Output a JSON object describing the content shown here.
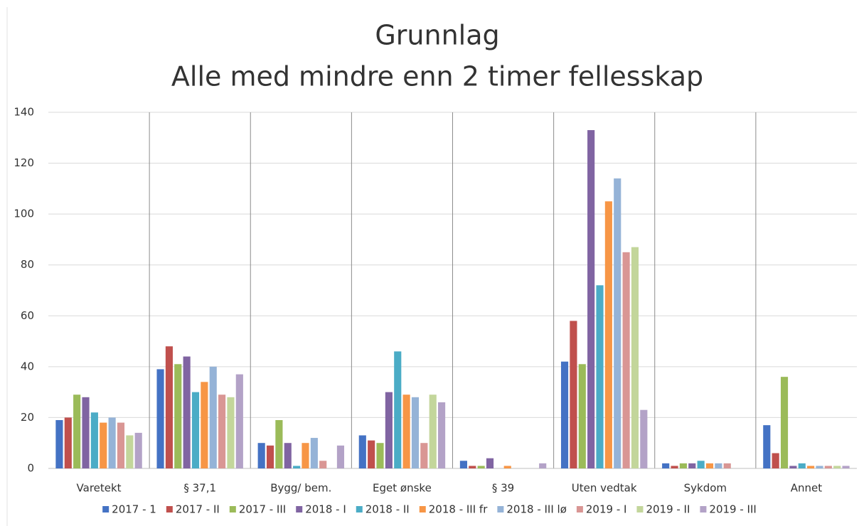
{
  "chart_data": {
    "type": "bar",
    "title": "Grunnlag",
    "subtitle": "Alle med mindre enn 2 timer fellesskap",
    "categories": [
      "Varetekt",
      "§ 37,1",
      "Bygg/ bem.",
      "Eget ønske",
      "§ 39",
      "Uten vedtak",
      "Sykdom",
      "Annet"
    ],
    "series": [
      {
        "name": "2017 - 1",
        "color": "#4472c4",
        "values": [
          19,
          39,
          10,
          13,
          3,
          42,
          2,
          17
        ]
      },
      {
        "name": "2017 - II",
        "color": "#c0504d",
        "values": [
          20,
          48,
          9,
          11,
          1,
          58,
          1,
          6
        ]
      },
      {
        "name": "2017 - III",
        "color": "#9bbb59",
        "values": [
          29,
          41,
          19,
          10,
          1,
          41,
          2,
          36
        ]
      },
      {
        "name": "2018 - I",
        "color": "#8064a2",
        "values": [
          28,
          44,
          10,
          30,
          4,
          133,
          2,
          1
        ]
      },
      {
        "name": "2018 - II",
        "color": "#4bacc6",
        "values": [
          22,
          30,
          1,
          46,
          0,
          72,
          3,
          2
        ]
      },
      {
        "name": "2018 - III fr",
        "color": "#f79646",
        "values": [
          18,
          34,
          10,
          29,
          1,
          105,
          2,
          1
        ]
      },
      {
        "name": "2018 - III lø",
        "color": "#95b3d7",
        "values": [
          20,
          40,
          12,
          28,
          0,
          114,
          2,
          1
        ]
      },
      {
        "name": "2019 - I",
        "color": "#d99694",
        "values": [
          18,
          29,
          3,
          10,
          0,
          85,
          2,
          1
        ]
      },
      {
        "name": "2019 - II",
        "color": "#c3d69b",
        "values": [
          13,
          28,
          0,
          29,
          0,
          87,
          0,
          1
        ]
      },
      {
        "name": "2019 - III",
        "color": "#b3a2c7",
        "values": [
          14,
          37,
          9,
          26,
          2,
          23,
          0,
          1
        ]
      }
    ],
    "ylim": [
      0,
      140
    ],
    "yticks": [
      0,
      20,
      40,
      60,
      80,
      100,
      120,
      140
    ],
    "grid": true,
    "legend": "bottom"
  }
}
